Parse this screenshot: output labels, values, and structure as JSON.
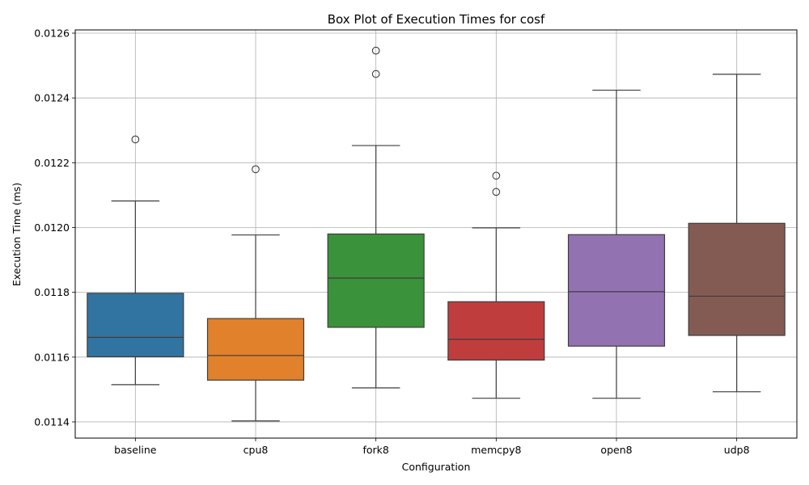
{
  "chart_data": {
    "type": "box",
    "title": "Box Plot of Execution Times for cosf",
    "xlabel": "Configuration",
    "ylabel": "Execution Time (ms)",
    "ylim": [
      0.01135,
      0.01261
    ],
    "yticks": [
      "0.0114",
      "0.0116",
      "0.0118",
      "0.0120",
      "0.0122",
      "0.0124",
      "0.0126"
    ],
    "ytick_values": [
      0.0114,
      0.0116,
      0.0118,
      0.012,
      0.0122,
      0.0124,
      0.0126
    ],
    "grid": true,
    "categories": [
      "baseline",
      "cpu8",
      "fork8",
      "memcpy8",
      "open8",
      "udp8"
    ],
    "boxes": [
      {
        "label": "baseline",
        "color": "#3274a1",
        "whislo": 0.011515,
        "q1": 0.011601,
        "med": 0.011661,
        "q3": 0.011797,
        "whishi": 0.012082,
        "fliers": [
          0.012272
        ]
      },
      {
        "label": "cpu8",
        "color": "#e1812c",
        "whislo": 0.011403,
        "q1": 0.011529,
        "med": 0.011605,
        "q3": 0.011719,
        "whishi": 0.011977,
        "fliers": [
          0.01218
        ]
      },
      {
        "label": "fork8",
        "color": "#3a923a",
        "whislo": 0.011505,
        "q1": 0.011692,
        "med": 0.011844,
        "q3": 0.01198,
        "whishi": 0.012253,
        "fliers": [
          0.012474,
          0.012546
        ]
      },
      {
        "label": "memcpy8",
        "color": "#c03d3e",
        "whislo": 0.011473,
        "q1": 0.011591,
        "med": 0.011655,
        "q3": 0.011771,
        "whishi": 0.011999,
        "fliers": [
          0.01211,
          0.01216
        ]
      },
      {
        "label": "open8",
        "color": "#9372b2",
        "whislo": 0.011473,
        "q1": 0.011634,
        "med": 0.011802,
        "q3": 0.011978,
        "whishi": 0.012424,
        "fliers": []
      },
      {
        "label": "udp8",
        "color": "#845b53",
        "whislo": 0.011493,
        "q1": 0.011667,
        "med": 0.011788,
        "q3": 0.012013,
        "whishi": 0.012473,
        "fliers": []
      }
    ]
  }
}
